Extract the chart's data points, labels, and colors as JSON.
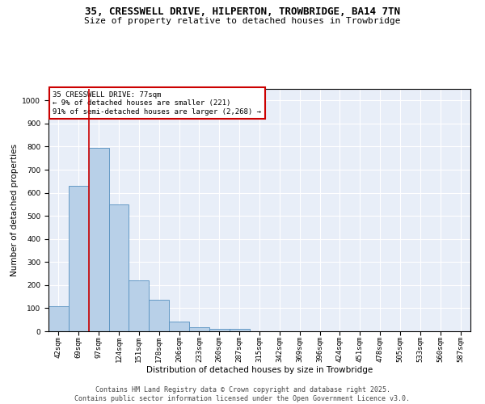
{
  "title_line1": "35, CRESSWELL DRIVE, HILPERTON, TROWBRIDGE, BA14 7TN",
  "title_line2": "Size of property relative to detached houses in Trowbridge",
  "xlabel": "Distribution of detached houses by size in Trowbridge",
  "ylabel": "Number of detached properties",
  "bar_color": "#b8d0e8",
  "bar_edge_color": "#5590c0",
  "background_color": "#e8eef8",
  "grid_color": "#ffffff",
  "vline_color": "#cc0000",
  "vline_x": 1.5,
  "annotation_text": "35 CRESSWELL DRIVE: 77sqm\n← 9% of detached houses are smaller (221)\n91% of semi-detached houses are larger (2,268) →",
  "annotation_box_color": "#cc0000",
  "categories": [
    "42sqm",
    "69sqm",
    "97sqm",
    "124sqm",
    "151sqm",
    "178sqm",
    "206sqm",
    "233sqm",
    "260sqm",
    "287sqm",
    "315sqm",
    "342sqm",
    "369sqm",
    "396sqm",
    "424sqm",
    "451sqm",
    "478sqm",
    "505sqm",
    "533sqm",
    "560sqm",
    "587sqm"
  ],
  "values": [
    108,
    630,
    795,
    548,
    222,
    135,
    42,
    17,
    10,
    10,
    0,
    0,
    0,
    0,
    0,
    0,
    0,
    0,
    0,
    0,
    0
  ],
  "ylim": [
    0,
    1050
  ],
  "yticks": [
    0,
    100,
    200,
    300,
    400,
    500,
    600,
    700,
    800,
    900,
    1000
  ],
  "footer_text": "Contains HM Land Registry data © Crown copyright and database right 2025.\nContains public sector information licensed under the Open Government Licence v3.0.",
  "title_fontsize": 9,
  "subtitle_fontsize": 8,
  "axis_label_fontsize": 7.5,
  "tick_fontsize": 6.5,
  "annotation_fontsize": 6.5,
  "footer_fontsize": 6
}
